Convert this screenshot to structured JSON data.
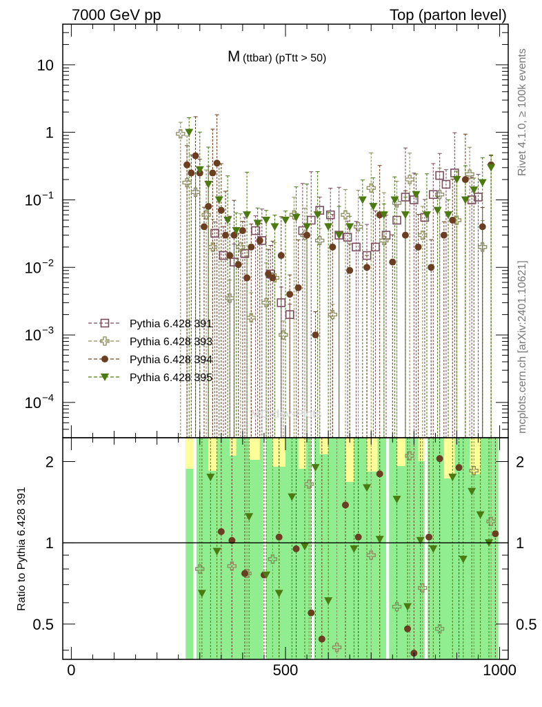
{
  "header": {
    "left": "7000 GeV pp",
    "right": "Top (parton level)"
  },
  "title_main": "M",
  "title_sub": "(ttbar) (pTtt > 50)",
  "side_label_top": "Rivet 4.1.0, ≥ 100k events",
  "side_label_bottom": "mcplots.cern.ch [arXiv:2401.10621]",
  "watermark": "MC-dev-Plots",
  "colors": {
    "s391": "#7b4b5e",
    "s393": "#8a8a5a",
    "s394": "#6b3e22",
    "s395": "#4a7a10",
    "band_green": "#90ee90",
    "band_yellow": "#ffff99"
  },
  "chart_data": {
    "type": "scatter",
    "xlim": [
      -20,
      1020
    ],
    "top_panel": {
      "yscale": "log",
      "ylim": [
        3e-05,
        40
      ],
      "y_ticks": [
        {
          "value": 10,
          "label": "10"
        },
        {
          "value": 1,
          "label": "1"
        },
        {
          "value": 0.1,
          "label": "10",
          "exp": "−1"
        },
        {
          "value": 0.01,
          "label": "10",
          "exp": "−2"
        },
        {
          "value": 0.001,
          "label": "10",
          "exp": "−3"
        },
        {
          "value": 0.0001,
          "label": "10",
          "exp": "−4"
        }
      ],
      "series": [
        {
          "key": "s391",
          "name": "Pythia 6.428 391",
          "marker": "open-square",
          "x": [
            335,
            355,
            380,
            405,
            430,
            445,
            465,
            490,
            510,
            540,
            560,
            580,
            605,
            625,
            645,
            665,
            690,
            710,
            735,
            760,
            780,
            800,
            825,
            845,
            860,
            875,
            895,
            935,
            950
          ],
          "y": [
            0.032,
            0.015,
            0.012,
            0.016,
            0.035,
            0.025,
            0.008,
            0.003,
            0.002,
            0.035,
            0.05,
            0.07,
            0.06,
            0.03,
            0.028,
            0.02,
            0.015,
            0.02,
            0.03,
            0.05,
            0.11,
            0.1,
            0.055,
            0.12,
            0.23,
            0.17,
            0.25,
            0.1,
            0.11
          ]
        },
        {
          "key": "s393",
          "name": "Pythia 6.428 393",
          "marker": "open-cross",
          "x": [
            255,
            270,
            290,
            315,
            330,
            370,
            395,
            420,
            455,
            475,
            495,
            520,
            545,
            580,
            610,
            640,
            670,
            700,
            730,
            760,
            790,
            820,
            860,
            900,
            930,
            960
          ],
          "y": [
            0.95,
            0.18,
            0.13,
            0.06,
            0.02,
            0.0035,
            0.02,
            0.0018,
            0.003,
            0.007,
            0.001,
            0.06,
            0.03,
            0.025,
            0.002,
            0.06,
            0.04,
            0.15,
            0.025,
            0.09,
            0.2,
            0.03,
            0.12,
            0.05,
            0.24,
            0.02
          ]
        },
        {
          "key": "s394",
          "name": "Pythia 6.428 394",
          "marker": "filled-circle",
          "x": [
            270,
            280,
            290,
            300,
            310,
            320,
            330,
            340,
            350,
            360,
            370,
            380,
            390,
            400,
            410,
            420,
            440,
            460,
            470,
            490,
            510,
            530,
            550,
            570,
            610,
            650,
            690,
            720,
            750,
            780,
            810,
            840,
            870,
            890,
            920,
            960,
            980
          ],
          "y": [
            0.33,
            0.25,
            0.45,
            0.25,
            0.04,
            0.08,
            0.25,
            0.35,
            0.07,
            0.03,
            0.015,
            0.03,
            0.011,
            0.035,
            0.007,
            0.02,
            0.025,
            0.008,
            0.007,
            0.015,
            0.004,
            0.005,
            0.03,
            0.001,
            0.02,
            0.009,
            0.01,
            0.06,
            0.012,
            0.03,
            0.02,
            0.01,
            0.03,
            0.05,
            0.2,
            0.04,
            0.33
          ]
        },
        {
          "key": "s395",
          "name": "Pythia 6.428 395",
          "marker": "filled-triangle",
          "x": [
            275,
            300,
            320,
            345,
            365,
            385,
            410,
            435,
            455,
            475,
            500,
            525,
            550,
            575,
            600,
            625,
            650,
            680,
            705,
            730,
            755,
            780,
            805,
            830,
            855,
            880,
            900,
            920,
            940,
            960,
            980
          ],
          "y": [
            1.0,
            0.28,
            0.17,
            0.1,
            0.05,
            0.035,
            0.06,
            0.045,
            0.05,
            0.04,
            0.05,
            0.055,
            0.04,
            0.06,
            0.04,
            0.03,
            0.04,
            0.1,
            0.08,
            0.06,
            0.1,
            0.06,
            0.12,
            0.06,
            0.07,
            0.06,
            0.2,
            0.1,
            0.14,
            0.18,
            0.3
          ]
        }
      ]
    },
    "ratio_panel": {
      "ylabel": "Ratio to Pythia 6.428 391",
      "yscale": "log",
      "ylim": [
        0.37,
        2.45
      ],
      "y_ticks": [
        {
          "value": 0.5,
          "label": "0.5"
        },
        {
          "value": 1,
          "label": "1"
        },
        {
          "value": 2,
          "label": "2"
        }
      ],
      "reference_line": 1,
      "band_range": [
        267,
        997
      ],
      "band_gaps": [
        [
          285,
          292
        ],
        [
          448,
          455
        ],
        [
          560,
          567
        ],
        [
          735,
          742
        ],
        [
          825,
          832
        ]
      ],
      "yellow_bins": [
        [
          267,
          290
        ],
        [
          320,
          340
        ],
        [
          370,
          385
        ],
        [
          415,
          440
        ],
        [
          470,
          500
        ],
        [
          530,
          548
        ],
        [
          580,
          600
        ],
        [
          640,
          660
        ],
        [
          690,
          715
        ],
        [
          760,
          780
        ],
        [
          810,
          830
        ],
        [
          870,
          895
        ],
        [
          930,
          955
        ]
      ],
      "series": [
        {
          "key": "s393",
          "x": [
            300,
            375,
            410,
            470,
            555,
            620,
            700,
            760,
            790,
            820,
            860,
            940,
            980
          ],
          "y": [
            0.8,
            0.82,
            0.77,
            0.87,
            1.65,
            0.41,
            0.9,
            0.58,
            2.1,
            0.68,
            0.48,
            1.85,
            1.2
          ]
        },
        {
          "key": "s394",
          "x": [
            350,
            375,
            405,
            450,
            485,
            525,
            560,
            585,
            640,
            670,
            720,
            785,
            800,
            835,
            860,
            905,
            990
          ],
          "y": [
            1.1,
            1.02,
            0.77,
            0.76,
            1.05,
            0.95,
            0.55,
            0.44,
            1.38,
            1.05,
            1.8,
            0.48,
            0.39,
            1.05,
            2.05,
            1.9,
            1.08
          ]
        },
        {
          "key": "s395",
          "x": [
            305,
            325,
            340,
            415,
            455,
            485,
            515,
            545,
            570,
            600,
            660,
            690,
            720,
            760,
            785,
            815,
            845,
            890,
            915,
            935,
            955,
            975
          ],
          "y": [
            0.65,
            1.75,
            0.93,
            1.25,
            0.76,
            0.65,
            1.48,
            0.97,
            1.9,
            0.61,
            0.95,
            1.6,
            1.03,
            1.45,
            0.58,
            1.02,
            0.95,
            1.75,
            0.87,
            1.55,
            1.27,
            1.0
          ]
        }
      ]
    },
    "x_ticks": [
      {
        "value": 0,
        "label": "0"
      },
      {
        "value": 500,
        "label": "500"
      },
      {
        "value": 1000,
        "label": "1000"
      }
    ],
    "legend_position": "lower-left"
  }
}
